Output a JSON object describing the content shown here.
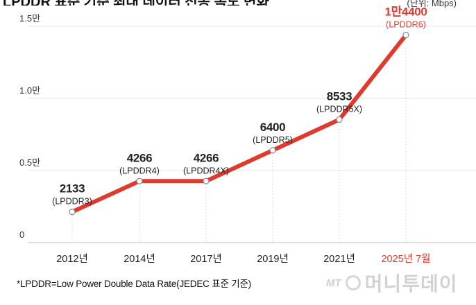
{
  "header": {
    "title": "LPDDR 표준 기준 최대 데이터 전송 속도 변화",
    "unit": "(단위: Mbps)"
  },
  "chart_data": {
    "type": "line",
    "title": "LPDDR 표준 기준 최대 데이터 전송 속도 변화",
    "unit": "(단위: Mbps)",
    "categories": [
      "2012년",
      "2014년",
      "2017년",
      "2019년",
      "2021년",
      "2025년 7월"
    ],
    "values": [
      2133,
      4266,
      4266,
      6400,
      8533,
      14400
    ],
    "value_labels": [
      "2133",
      "4266",
      "4266",
      "6400",
      "8533",
      "1만4400"
    ],
    "point_labels": [
      "(LPDDR3)",
      "(LPDDR4)",
      "(LPDDR4X)",
      "(LPDDR5)",
      "(LPDDR5X)",
      "(LPDDR6)"
    ],
    "highlight_index": 5,
    "yticks": [
      0,
      5000,
      10000,
      15000
    ],
    "ytick_labels": [
      "0",
      "0.5만",
      "1.0만",
      "1.5만"
    ],
    "ylim": [
      0,
      15000
    ],
    "grid": true,
    "line_color": "#e03a2f",
    "highlight_color": "#e03a2f",
    "text_color": "#222222"
  },
  "footnote": "*LPDDR=Low Power Double Data Rate(JEDEC 표준 기준)",
  "logo": {
    "prefix": "MT",
    "name": "머니투데이"
  }
}
